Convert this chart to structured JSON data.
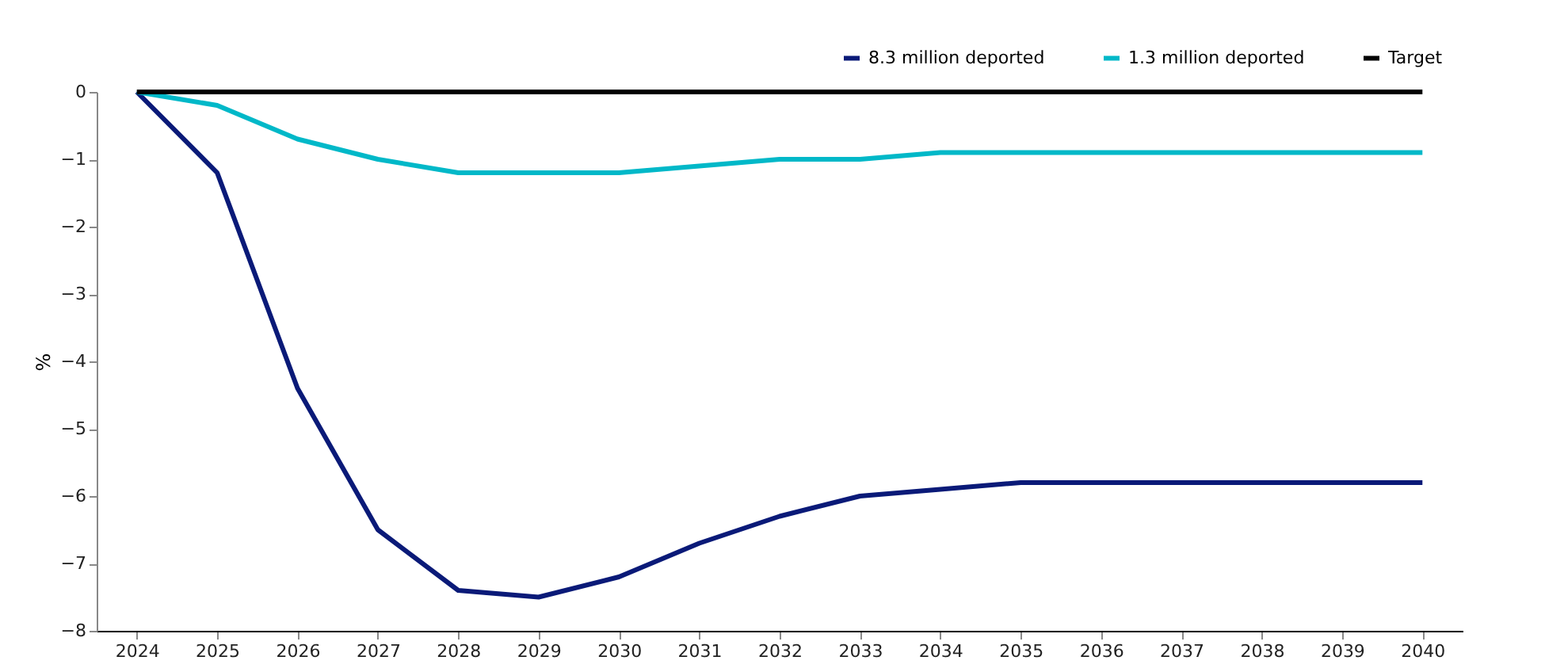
{
  "chart_data": {
    "type": "line",
    "ylabel": "%",
    "categories": [
      "2024",
      "2025",
      "2026",
      "2027",
      "2028",
      "2029",
      "2030",
      "2031",
      "2032",
      "2033",
      "2034",
      "2035",
      "2036",
      "2037",
      "2038",
      "2039",
      "2040"
    ],
    "series": [
      {
        "name": "8.3 million deported",
        "color": "#0a1a78",
        "values": [
          0,
          -1.2,
          -4.4,
          -6.5,
          -7.4,
          -7.5,
          -7.2,
          -6.7,
          -6.3,
          -6.0,
          -5.9,
          -5.8,
          -5.8,
          -5.8,
          -5.8,
          -5.8,
          -5.8
        ]
      },
      {
        "name": "1.3 million deported",
        "color": "#00b8c8",
        "values": [
          0,
          -0.2,
          -0.7,
          -1.0,
          -1.2,
          -1.2,
          -1.2,
          -1.1,
          -1.0,
          -1.0,
          -0.9,
          -0.9,
          -0.9,
          -0.9,
          -0.9,
          -0.9,
          -0.9
        ]
      },
      {
        "name": "Target",
        "color": "#000000",
        "values": [
          0,
          0,
          0,
          0,
          0,
          0,
          0,
          0,
          0,
          0,
          0,
          0,
          0,
          0,
          0,
          0,
          0
        ]
      }
    ],
    "ylim": [
      -8,
      0
    ],
    "yticks": [
      -8,
      -7,
      -6,
      -5,
      -4,
      -3,
      -2,
      -1,
      0
    ],
    "grid": false,
    "legend": "top right",
    "marker": "none",
    "line_style": "solid"
  }
}
